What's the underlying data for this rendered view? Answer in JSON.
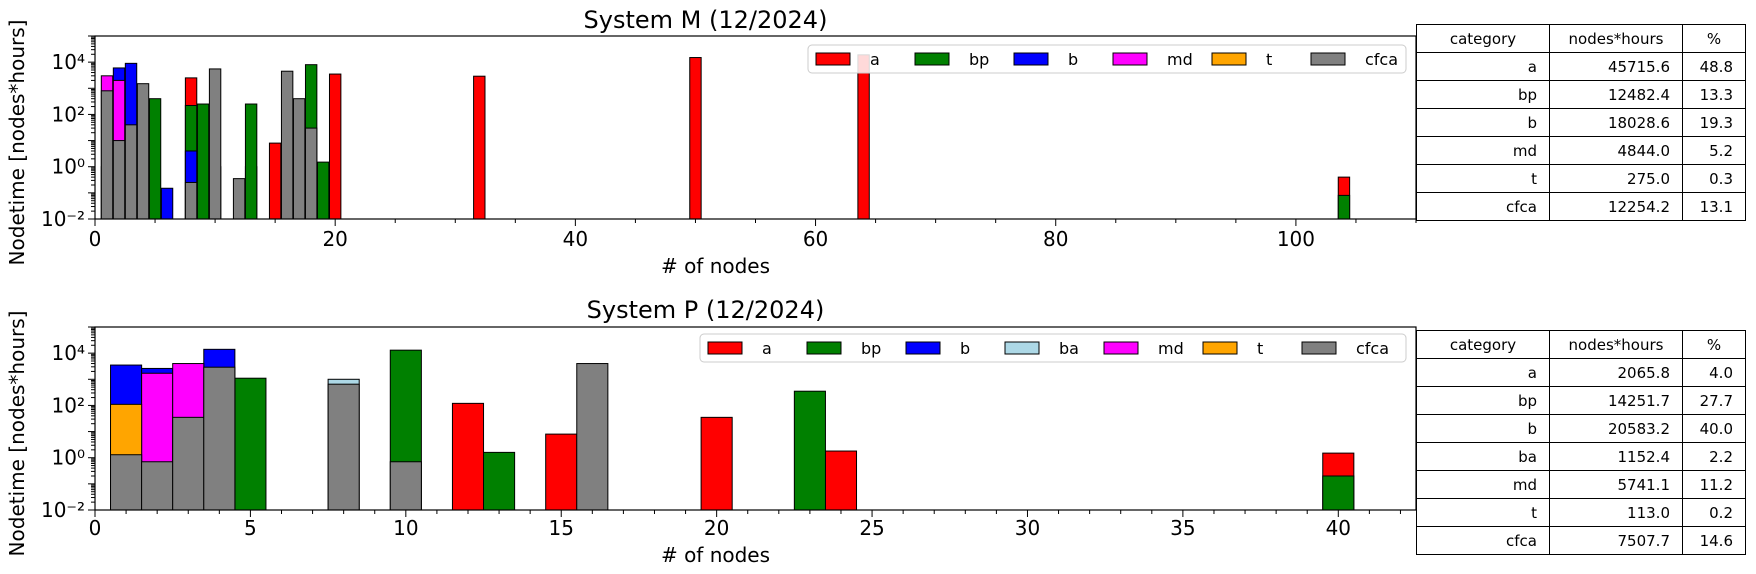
{
  "chart_data": [
    {
      "type": "bar",
      "stacked": true,
      "title": "System M (12/2024)",
      "xlabel": "# of nodes",
      "ylabel": "Nodetime [nodes*hours]",
      "yscale": "log",
      "xlim": [
        0,
        110
      ],
      "ylim": [
        0.01,
        100000
      ],
      "xticks": [
        "0",
        "20",
        "40",
        "60",
        "80",
        "100"
      ],
      "yticks": [
        "10⁻²",
        "10⁰",
        "10²",
        "10⁴"
      ],
      "legend_loc": "upper-right",
      "colors": {
        "a": "#ff0000",
        "bp": "#008000",
        "b": "#0000ff",
        "md": "#ff00ff",
        "t": "#ffa500",
        "cfca": "#808080"
      },
      "series": [
        {
          "name": "a",
          "points": [
            [
              1,
              1
            ],
            [
              8,
              2500
            ],
            [
              9,
              2
            ],
            [
              10,
              1
            ],
            [
              13,
              1
            ],
            [
              15,
              8
            ],
            [
              17,
              2
            ],
            [
              20,
              3500
            ],
            [
              32,
              2900
            ],
            [
              50,
              15000
            ],
            [
              64,
              19000
            ],
            [
              104,
              0.4
            ]
          ]
        },
        {
          "name": "bp",
          "points": [
            [
              5,
              400
            ],
            [
              8,
              220
            ],
            [
              9,
              250
            ],
            [
              13,
              250
            ],
            [
              18,
              8000
            ],
            [
              19,
              1.5
            ],
            [
              104,
              0.08
            ]
          ]
        },
        {
          "name": "b",
          "points": [
            [
              2,
              6000
            ],
            [
              3,
              9000
            ],
            [
              6,
              0.15
            ],
            [
              8,
              4
            ]
          ]
        },
        {
          "name": "md",
          "points": [
            [
              1,
              3000
            ],
            [
              2,
              2000
            ]
          ]
        },
        {
          "name": "t",
          "points": []
        },
        {
          "name": "cfca",
          "points": [
            [
              1,
              800
            ],
            [
              2,
              10
            ],
            [
              3,
              40
            ],
            [
              4,
              1500
            ],
            [
              8,
              0.25
            ],
            [
              10,
              5500
            ],
            [
              12,
              0.35
            ],
            [
              16,
              4500
            ],
            [
              17,
              400
            ],
            [
              18,
              30
            ]
          ]
        }
      ],
      "table": {
        "headers": [
          "category",
          "nodes*hours",
          "%"
        ],
        "rows": [
          [
            "a",
            "45715.6",
            "48.8"
          ],
          [
            "bp",
            "12482.4",
            "13.3"
          ],
          [
            "b",
            "18028.6",
            "19.3"
          ],
          [
            "md",
            "4844.0",
            "5.2"
          ],
          [
            "t",
            "275.0",
            "0.3"
          ],
          [
            "cfca",
            "12254.2",
            "13.1"
          ]
        ]
      }
    },
    {
      "type": "bar",
      "stacked": true,
      "title": "System P (12/2024)",
      "xlabel": "# of nodes",
      "ylabel": "Nodetime [nodes*hours]",
      "yscale": "log",
      "xlim": [
        0,
        42.5
      ],
      "ylim": [
        0.01,
        100000
      ],
      "xticks": [
        "0",
        "5",
        "10",
        "15",
        "20",
        "25",
        "30",
        "35",
        "40"
      ],
      "yticks": [
        "10⁻²",
        "10⁰",
        "10²",
        "10⁴"
      ],
      "legend_loc": "upper-right",
      "colors": {
        "a": "#ff0000",
        "bp": "#008000",
        "b": "#0000ff",
        "ba": "#add8e6",
        "md": "#ff00ff",
        "t": "#ffa500",
        "cfca": "#808080"
      },
      "series": [
        {
          "name": "a",
          "points": [
            [
              12,
              120
            ],
            [
              15,
              8
            ],
            [
              20,
              35
            ],
            [
              24,
              1.8
            ],
            [
              40,
              1.5
            ]
          ]
        },
        {
          "name": "bp",
          "points": [
            [
              5,
              1100
            ],
            [
              10,
              13000
            ],
            [
              13,
              1.6
            ],
            [
              23,
              350
            ],
            [
              40,
              0.2
            ]
          ]
        },
        {
          "name": "b",
          "points": [
            [
              1,
              3500
            ],
            [
              2,
              2600
            ],
            [
              4,
              14000
            ]
          ]
        },
        {
          "name": "ba",
          "points": [
            [
              8,
              1000
            ]
          ]
        },
        {
          "name": "md",
          "points": [
            [
              2,
              1700
            ],
            [
              3,
              4000
            ]
          ]
        },
        {
          "name": "t",
          "points": [
            [
              1,
              110
            ]
          ]
        },
        {
          "name": "cfca",
          "points": [
            [
              1,
              1.3
            ],
            [
              2,
              0.7
            ],
            [
              3,
              35
            ],
            [
              4,
              2900
            ],
            [
              8,
              650
            ],
            [
              10,
              0.7
            ],
            [
              16,
              4000
            ]
          ]
        }
      ],
      "table": {
        "headers": [
          "category",
          "nodes*hours",
          "%"
        ],
        "rows": [
          [
            "a",
            "2065.8",
            "4.0"
          ],
          [
            "bp",
            "14251.7",
            "27.7"
          ],
          [
            "b",
            "20583.2",
            "40.0"
          ],
          [
            "ba",
            "1152.4",
            "2.2"
          ],
          [
            "md",
            "5741.1",
            "11.2"
          ],
          [
            "t",
            "113.0",
            "0.2"
          ],
          [
            "cfca",
            "7507.7",
            "14.6"
          ]
        ]
      }
    }
  ]
}
